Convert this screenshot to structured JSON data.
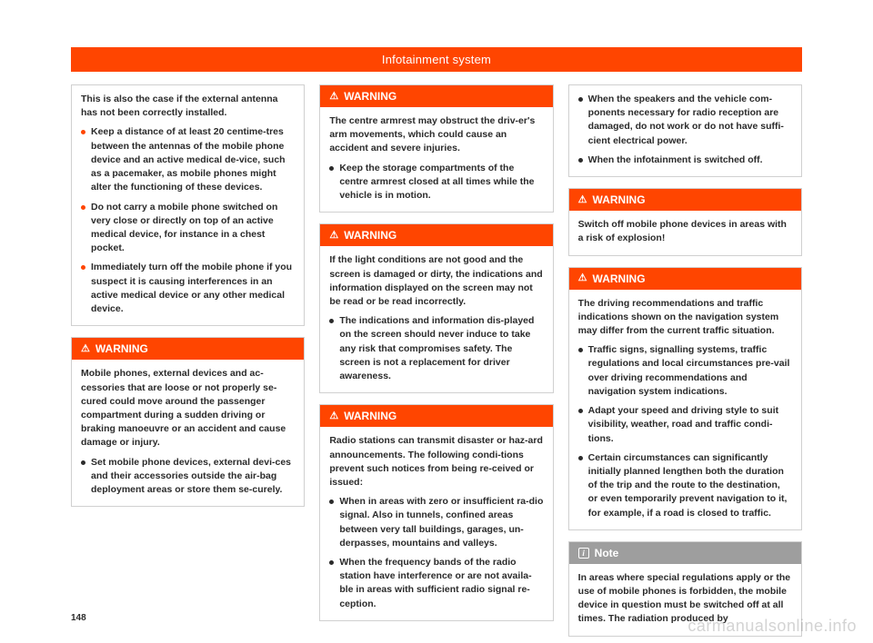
{
  "header": {
    "title": "Infotainment system"
  },
  "page_number": "148",
  "watermark": "carmanualsonline.info",
  "labels": {
    "warning": "WARNING",
    "note": "Note"
  },
  "col1": {
    "intro": {
      "p1": "This is also the case if the external antenna has not been correctly installed.",
      "b1": "Keep a distance of at least 20 centime-tres between the antennas of the mobile phone device and an active medical de-vice, such as a pacemaker, as mobile phones might alter the functioning of these devices.",
      "b2": "Do not carry a mobile phone switched on very close or directly on top of an active medical device, for instance in a chest pocket.",
      "b3": "Immediately turn off the mobile phone if you suspect it is causing interferences in an active medical device or any other medical device."
    },
    "warn1": {
      "p1": "Mobile phones, external devices and ac-cessories that are loose or not properly se-cured could move around the passenger compartment during a sudden driving or braking manoeuvre or an accident and cause damage or injury.",
      "b1": "Set mobile phone devices, external devi-ces and their accessories outside the air-bag deployment areas or store them se-curely."
    }
  },
  "col2": {
    "warn1": {
      "p1": "The centre armrest may obstruct the driv-er's arm movements, which could cause an accident and severe injuries.",
      "b1": "Keep the storage compartments of the centre armrest closed at all times while the vehicle is in motion."
    },
    "warn2": {
      "p1": "If the light conditions are not good and the screen is damaged or dirty, the indications and information displayed on the screen may not be read or be read incorrectly.",
      "b1": "The indications and information dis-played on the screen should never induce to take any risk that compromises safety. The screen is not a replacement for driver awareness."
    },
    "warn3": {
      "p1": "Radio stations can transmit disaster or haz-ard announcements. The following condi-tions prevent such notices from being re-ceived or issued:",
      "b1": "When in areas with zero or insufficient ra-dio signal. Also in tunnels, confined areas between very tall buildings, garages, un-derpasses, mountains and valleys.",
      "b2": "When the frequency bands of the radio station have interference or are not availa-ble in areas with sufficient radio signal re-ception."
    }
  },
  "col3": {
    "cont": {
      "b1": "When the speakers and the vehicle com-ponents necessary for radio reception are damaged, do not work or do not have suffi-cient electrical power.",
      "b2": "When the infotainment is switched off."
    },
    "warn1": {
      "p1": "Switch off mobile phone devices in areas with a risk of explosion!"
    },
    "warn2": {
      "p1": "The driving recommendations and traffic indications shown on the navigation system may differ from the current traffic situation.",
      "b1": "Traffic signs, signalling systems, traffic regulations and local circumstances pre-vail over driving recommendations and navigation system indications.",
      "b2": "Adapt your speed and driving style to suit visibility, weather, road and traffic condi-tions.",
      "b3": "Certain circumstances can significantly initially planned lengthen both the duration of the trip and the route to the destination, or even temporarily prevent navigation to it, for example, if a road is closed to traffic."
    },
    "note": {
      "p1": "In areas where special regulations apply or the use of mobile phones is forbidden, the mobile device in question must be switched off at all times. The radiation produced by"
    }
  }
}
